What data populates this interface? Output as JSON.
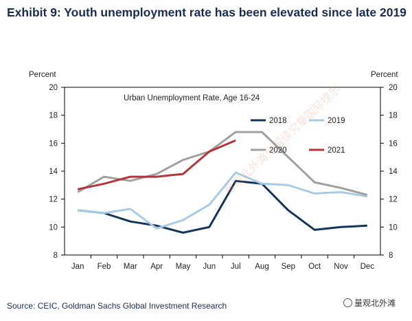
{
  "header": {
    "title": "Exhibit 9: Youth unemployment rate has been elevated since late 2019"
  },
  "footer": {
    "source": "Source: CEIC, Goldman Sachs Global Investment Research",
    "watermark": "量观北外滩"
  },
  "stamp_text": "量观北外滩全国读究量国际提示",
  "chart_data": {
    "type": "line",
    "title": "Urban Unemployment Rate, Age 16-24",
    "ylabel_left": "Percent",
    "ylabel_right": "Percent",
    "ylim": [
      8,
      20
    ],
    "yticks": [
      8,
      10,
      12,
      14,
      16,
      18,
      20
    ],
    "categories": [
      "Jan",
      "Feb",
      "Mar",
      "Apr",
      "May",
      "Jun",
      "Jul",
      "Aug",
      "Sep",
      "Oct",
      "Nov",
      "Dec"
    ],
    "grid": false,
    "legend_position": "right",
    "series": [
      {
        "name": "2018",
        "color": "#12345b",
        "values": [
          11.2,
          11.0,
          10.4,
          10.1,
          9.6,
          10.0,
          13.3,
          13.1,
          11.2,
          9.8,
          10.0,
          10.1
        ]
      },
      {
        "name": "2019",
        "color": "#a7cbe6",
        "values": [
          11.2,
          11.0,
          11.3,
          9.9,
          10.5,
          11.6,
          13.9,
          13.1,
          13.0,
          12.4,
          12.5,
          12.2
        ]
      },
      {
        "name": "2020",
        "color": "#a0a0a0",
        "values": [
          12.5,
          13.6,
          13.3,
          13.8,
          14.8,
          15.4,
          16.8,
          16.8,
          null,
          13.2,
          12.8,
          12.3
        ]
      },
      {
        "name": "2021",
        "color": "#b5343c",
        "values": [
          12.7,
          13.1,
          13.6,
          13.6,
          13.8,
          15.4,
          16.2,
          null,
          null,
          null,
          null,
          null
        ]
      }
    ]
  }
}
